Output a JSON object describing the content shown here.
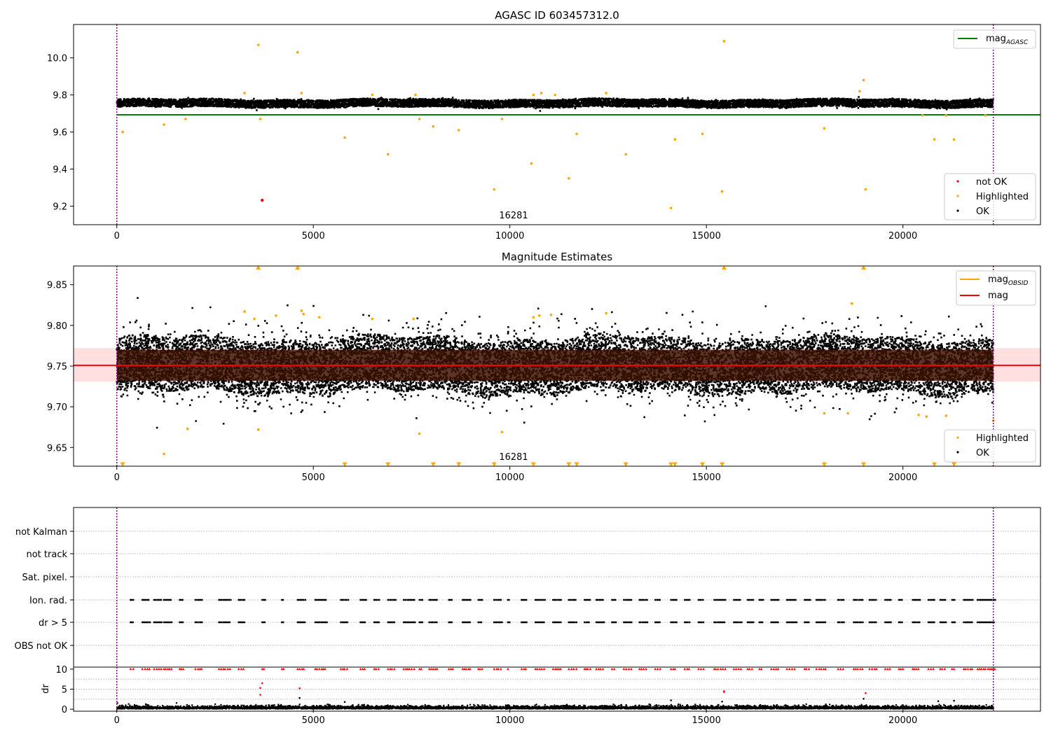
{
  "figure": {
    "panel1_title": "AGASC ID 603457312.0",
    "panel2_title": "Magnitude Estimates",
    "obsid_label": "16281"
  },
  "chart_data": [
    {
      "type": "scatter",
      "title": "AGASC ID 603457312.0",
      "xlim": [
        -1100,
        23500
      ],
      "ylim": [
        9.1,
        10.18
      ],
      "x_ticks": [
        0,
        5000,
        10000,
        15000,
        20000,
        25000
      ],
      "y_ticks": [
        9.2,
        9.4,
        9.6,
        9.8,
        10.0
      ],
      "vlines": [
        0,
        22300
      ],
      "annotation": "16281",
      "ok_band": {
        "x_range": [
          0,
          22300
        ],
        "center": 9.755,
        "spread": 0.035
      },
      "hlines": [
        {
          "name": "mag_AGASC",
          "y": 9.693,
          "color": "#008000",
          "x_range": [
            0,
            23500
          ]
        }
      ],
      "legend_top": [
        {
          "label": "mag",
          "sub": "AGASC",
          "color": "#008000"
        }
      ],
      "legend_bottom": [
        {
          "label": "not OK",
          "color": "#ff0000"
        },
        {
          "label": "Highlighted",
          "color": "#ffa500"
        },
        {
          "label": "OK",
          "color": "#000000"
        }
      ],
      "series": [
        {
          "name": "not OK",
          "color": "#ff0000",
          "points": [
            [
              3700,
              9.232
            ]
          ]
        },
        {
          "name": "Highlighted",
          "color": "#ffa500",
          "points": [
            [
              150,
              9.6
            ],
            [
              1200,
              9.64
            ],
            [
              1750,
              9.67
            ],
            [
              3250,
              9.81
            ],
            [
              3600,
              10.07
            ],
            [
              3650,
              9.67
            ],
            [
              4600,
              10.03
            ],
            [
              4700,
              9.81
            ],
            [
              5800,
              9.57
            ],
            [
              6500,
              9.8
            ],
            [
              6900,
              9.48
            ],
            [
              7600,
              9.8
            ],
            [
              7700,
              9.67
            ],
            [
              8050,
              9.63
            ],
            [
              8700,
              9.61
            ],
            [
              9600,
              9.29
            ],
            [
              9800,
              9.67
            ],
            [
              10550,
              9.43
            ],
            [
              10600,
              9.8
            ],
            [
              10800,
              9.81
            ],
            [
              11150,
              9.8
            ],
            [
              11500,
              9.35
            ],
            [
              11700,
              9.59
            ],
            [
              12450,
              9.81
            ],
            [
              12950,
              9.48
            ],
            [
              14100,
              9.19
            ],
            [
              14200,
              9.56
            ],
            [
              14900,
              9.59
            ],
            [
              15400,
              9.28
            ],
            [
              15450,
              10.09
            ],
            [
              18000,
              9.62
            ],
            [
              18900,
              9.82
            ],
            [
              19000,
              9.88
            ],
            [
              19050,
              9.29
            ],
            [
              20500,
              9.69
            ],
            [
              20800,
              9.56
            ],
            [
              21100,
              9.69
            ],
            [
              21300,
              9.56
            ],
            [
              22100,
              9.69
            ]
          ]
        }
      ]
    },
    {
      "type": "scatter",
      "title": "Magnitude Estimates",
      "xlim": [
        -1100,
        23500
      ],
      "ylim": [
        9.627,
        9.873
      ],
      "x_ticks": [
        0,
        5000,
        10000,
        15000,
        20000,
        25000
      ],
      "y_ticks": [
        9.65,
        9.7,
        9.75,
        9.8,
        9.85
      ],
      "vlines": [
        0,
        22300
      ],
      "annotation": "16281",
      "mag_line": {
        "name": "mag",
        "y": 9.751,
        "color": "#ff0000"
      },
      "mag_band": {
        "low": 9.731,
        "high": 9.772,
        "color": "#ffc0c0"
      },
      "core_band": {
        "low": 9.732,
        "high": 9.77
      },
      "legend_top": [
        {
          "label": "mag",
          "sub": "OBSID",
          "color": "#ffa500"
        },
        {
          "label": "mag",
          "sub": "",
          "color": "#ff0000"
        }
      ],
      "legend_bottom": [
        {
          "label": "Highlighted",
          "color": "#ffa500"
        },
        {
          "label": "OK",
          "color": "#000000"
        }
      ],
      "series": [
        {
          "name": "Highlighted",
          "color": "#ffa500",
          "points": [
            [
              1200,
              9.642
            ],
            [
              1800,
              9.673
            ],
            [
              3250,
              9.817
            ],
            [
              3500,
              9.808
            ],
            [
              3600,
              9.672
            ],
            [
              4050,
              9.812
            ],
            [
              4700,
              9.818
            ],
            [
              4750,
              9.814
            ],
            [
              5150,
              9.81
            ],
            [
              6500,
              9.808
            ],
            [
              7550,
              9.808
            ],
            [
              7700,
              9.667
            ],
            [
              9800,
              9.669
            ],
            [
              10600,
              9.81
            ],
            [
              10750,
              9.812
            ],
            [
              11050,
              9.813
            ],
            [
              12450,
              9.815
            ],
            [
              18000,
              9.692
            ],
            [
              18700,
              9.827
            ],
            [
              18600,
              9.692
            ],
            [
              20400,
              9.69
            ],
            [
              20600,
              9.688
            ],
            [
              21100,
              9.689
            ],
            [
              22300,
              9.683
            ]
          ]
        },
        {
          "name": "Highlighted (above range)",
          "color": "#ffa500",
          "marker": "triangle-up",
          "points": [
            [
              3600,
              9.873
            ],
            [
              4600,
              9.873
            ],
            [
              15450,
              9.873
            ],
            [
              19000,
              9.873
            ]
          ]
        },
        {
          "name": "Highlighted (below range)",
          "color": "#ffa500",
          "marker": "triangle-down",
          "points": [
            [
              150,
              9.627
            ],
            [
              5800,
              9.627
            ],
            [
              6900,
              9.627
            ],
            [
              8050,
              9.627
            ],
            [
              8700,
              9.627
            ],
            [
              9600,
              9.627
            ],
            [
              10600,
              9.627
            ],
            [
              11500,
              9.627
            ],
            [
              11700,
              9.627
            ],
            [
              12950,
              9.627
            ],
            [
              14100,
              9.627
            ],
            [
              14200,
              9.627
            ],
            [
              14900,
              9.627
            ],
            [
              15400,
              9.627
            ],
            [
              18000,
              9.627
            ],
            [
              19000,
              9.627
            ],
            [
              20800,
              9.627
            ],
            [
              21300,
              9.627
            ]
          ]
        }
      ]
    },
    {
      "type": "scatter",
      "title": "",
      "xlim": [
        -1100,
        23500
      ],
      "y_categories": [
        "not Kalman",
        "not track",
        "Sat. pixel.",
        "Ion. rad.",
        "dr > 5",
        "OBS not OK"
      ],
      "flag_rows": [
        "Ion. rad.",
        "dr > 5"
      ],
      "flag_clusters": [
        [
          350,
          450
        ],
        [
          650,
          850
        ],
        [
          950,
          1150
        ],
        [
          1200,
          1400
        ],
        [
          1600,
          1700
        ],
        [
          2000,
          2200
        ],
        [
          2600,
          2900
        ],
        [
          3100,
          3250
        ],
        [
          3700,
          3800
        ],
        [
          4200,
          4250
        ],
        [
          4600,
          4800
        ],
        [
          5050,
          5350
        ],
        [
          5700,
          5900
        ],
        [
          6200,
          6350
        ],
        [
          6550,
          6700
        ],
        [
          6900,
          7100
        ],
        [
          7300,
          7600
        ],
        [
          7700,
          7800
        ],
        [
          7950,
          8150
        ],
        [
          8450,
          8550
        ],
        [
          8800,
          9000
        ],
        [
          9200,
          9300
        ],
        [
          9600,
          9800
        ],
        [
          9950,
          10000
        ],
        [
          10300,
          10450
        ],
        [
          10650,
          10900
        ],
        [
          11100,
          11300
        ],
        [
          11500,
          11700
        ],
        [
          11900,
          12050
        ],
        [
          12200,
          12400
        ],
        [
          12600,
          12700
        ],
        [
          12900,
          13100
        ],
        [
          13300,
          13500
        ],
        [
          13700,
          13850
        ],
        [
          14100,
          14250
        ],
        [
          14450,
          14600
        ],
        [
          14800,
          14950
        ],
        [
          15200,
          15500
        ],
        [
          15700,
          15900
        ],
        [
          16050,
          16200
        ],
        [
          16350,
          16450
        ],
        [
          16650,
          16850
        ],
        [
          17050,
          17300
        ],
        [
          17500,
          17650
        ],
        [
          17800,
          18050
        ],
        [
          18350,
          18500
        ],
        [
          18750,
          19000
        ],
        [
          19150,
          19350
        ],
        [
          19550,
          19700
        ],
        [
          19900,
          20000
        ],
        [
          20250,
          20450
        ],
        [
          20650,
          20800
        ],
        [
          20950,
          21100
        ],
        [
          21250,
          21350
        ],
        [
          21550,
          21800
        ],
        [
          21900,
          22350
        ]
      ],
      "flag_color": "#000000"
    },
    {
      "type": "scatter",
      "title": "",
      "ylabel": "dr",
      "xlim": [
        -1100,
        23500
      ],
      "ylim": [
        -0.5,
        10.5
      ],
      "x_ticks": [
        0,
        5000,
        10000,
        15000,
        20000,
        25000
      ],
      "y_ticks": [
        0,
        5,
        10
      ],
      "vlines": [
        0,
        22300
      ],
      "capped_value": 10,
      "capped_color": "#ff0000",
      "baseline_color": "#000000",
      "series": [
        {
          "name": "dr outliers",
          "color": "#ff0000",
          "points": [
            [
              3650,
              3.6
            ],
            [
              3650,
              5.3
            ],
            [
              3700,
              6.5
            ],
            [
              4650,
              5.2
            ],
            [
              15450,
              4.3
            ],
            [
              15450,
              4.5
            ],
            [
              19050,
              4.0
            ]
          ]
        },
        {
          "name": "dr moderate",
          "color": "#000000",
          "points": [
            [
              4650,
              2.8
            ],
            [
              5800,
              1.8
            ],
            [
              14100,
              2.2
            ],
            [
              15400,
              1.9
            ],
            [
              19000,
              2.6
            ],
            [
              20900,
              2.0
            ],
            [
              21300,
              2.1
            ]
          ]
        }
      ]
    }
  ]
}
